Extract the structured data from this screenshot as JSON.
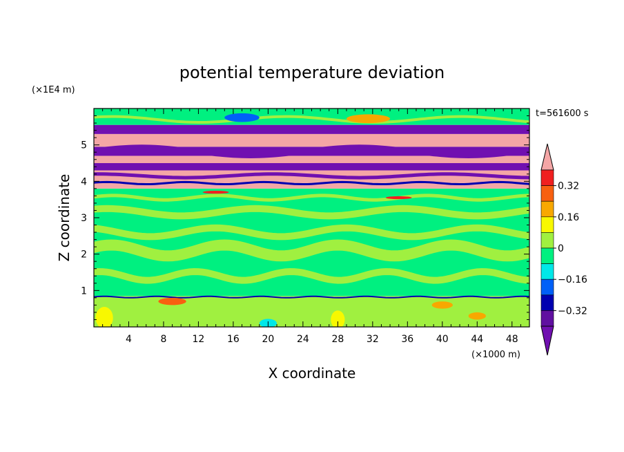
{
  "chart_data": {
    "type": "heatmap",
    "title": "potential temperature deviation",
    "xlabel": "X coordinate",
    "ylabel": "Z coordinate",
    "x_unit": "(×1000 m)",
    "y_unit": "(×1E4 m)",
    "time_label": "t=561600 s",
    "xlim": [
      0,
      50
    ],
    "ylim": [
      0,
      6
    ],
    "x_ticks": [
      4,
      8,
      12,
      16,
      20,
      24,
      28,
      32,
      36,
      40,
      44,
      48
    ],
    "y_ticks": [
      1,
      2,
      3,
      4,
      5
    ],
    "colorbar": {
      "levels": [
        -0.4,
        -0.32,
        -0.24,
        -0.16,
        -0.08,
        0,
        0.08,
        0.16,
        0.24,
        0.32,
        0.4
      ],
      "tick_labels": [
        "0.32",
        "0.16",
        "0",
        "−0.16",
        "−0.32"
      ],
      "tick_values": [
        0.32,
        0.16,
        0,
        -0.16,
        -0.32
      ],
      "colors_top_to_bottom": [
        "#f4a6a6",
        "#f02020",
        "#f86010",
        "#f8a800",
        "#f8f800",
        "#a0f040",
        "#00f080",
        "#00e8e8",
        "#0060f8",
        "#0000b0",
        "#6010a0",
        "#7010b0"
      ]
    },
    "bands": [
      {
        "z0": 0.0,
        "z1": 0.85,
        "color": "#a0f040"
      },
      {
        "z0": 0.85,
        "z1": 3.8,
        "color": "#00f080"
      },
      {
        "z0": 3.8,
        "z1": 3.95,
        "color": "#f4a6a6"
      },
      {
        "z0": 3.95,
        "z1": 4.3,
        "color": "#f4a6a6"
      },
      {
        "z0": 4.3,
        "z1": 4.5,
        "color": "#7010b0"
      },
      {
        "z0": 4.5,
        "z1": 4.7,
        "color": "#f4a6a6"
      },
      {
        "z0": 4.7,
        "z1": 4.95,
        "color": "#7010b0"
      },
      {
        "z0": 4.95,
        "z1": 5.3,
        "color": "#f4a6a6"
      },
      {
        "z0": 5.3,
        "z1": 5.55,
        "color": "#7010b0"
      },
      {
        "z0": 5.55,
        "z1": 6.0,
        "color": "#00f080"
      }
    ]
  }
}
